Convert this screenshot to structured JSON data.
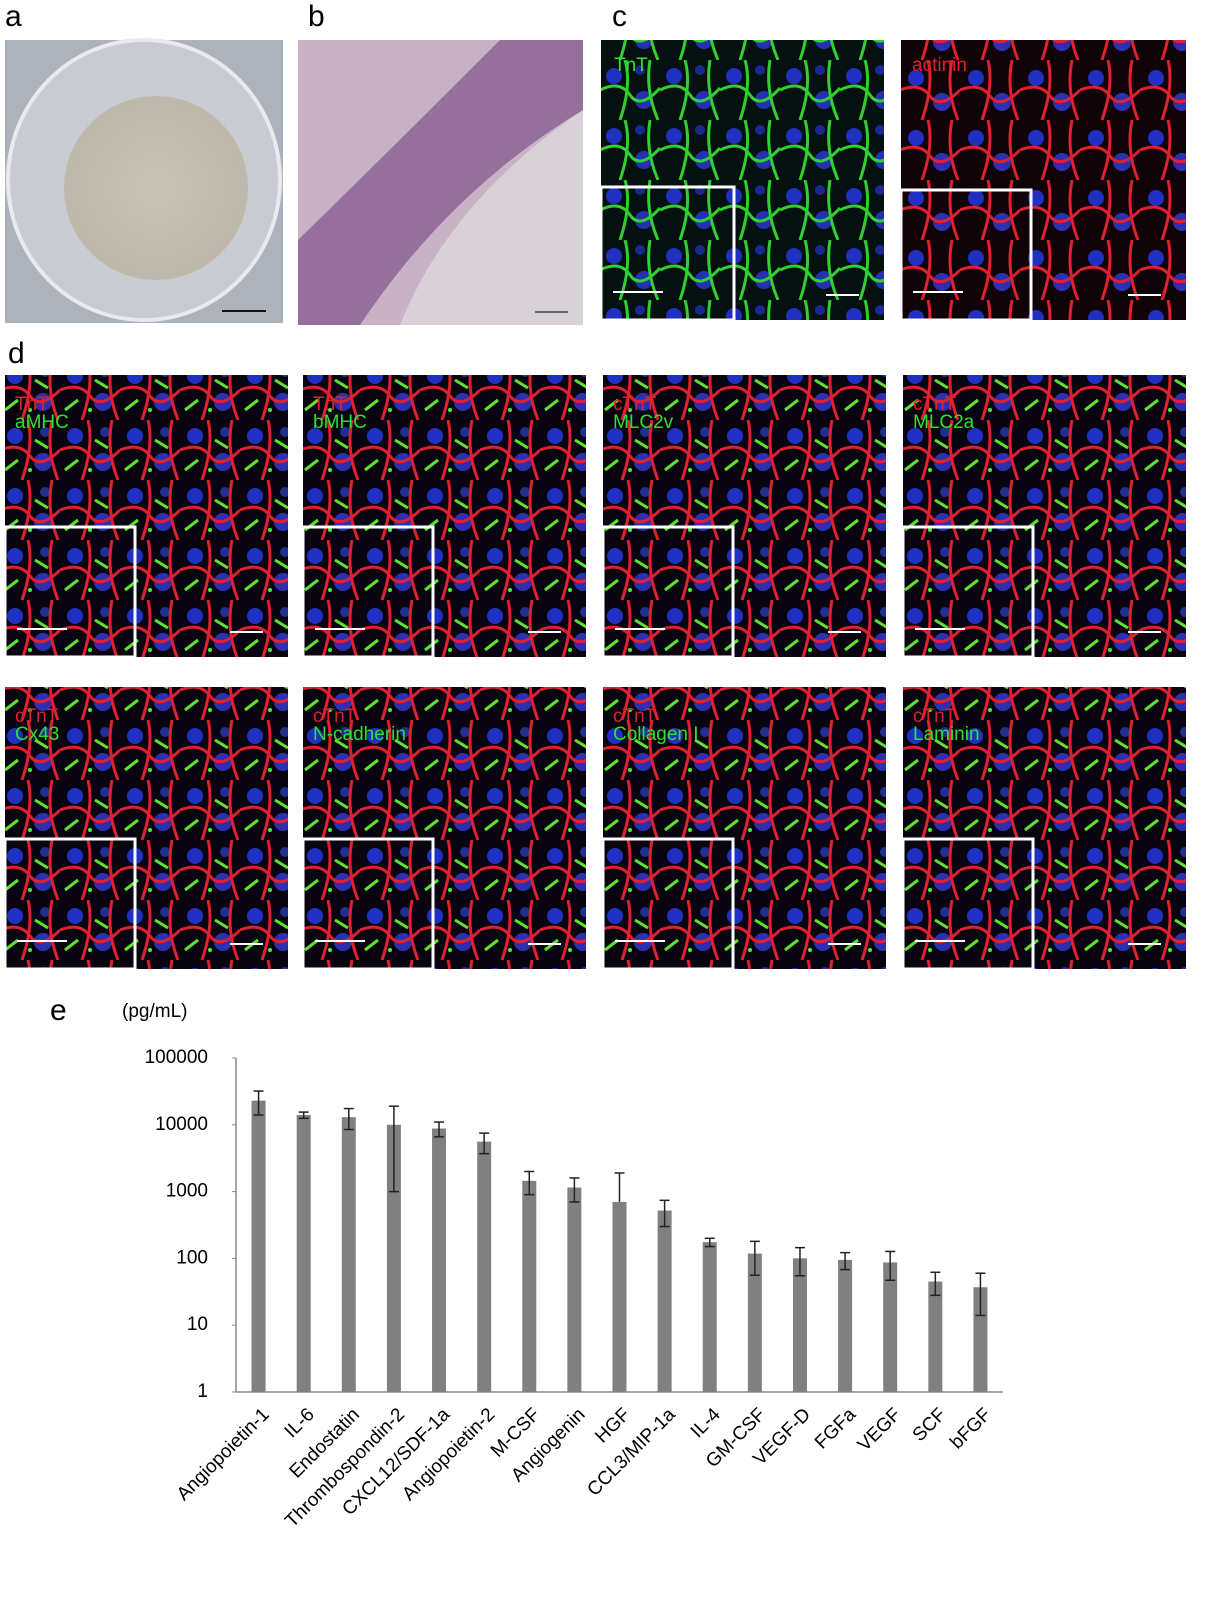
{
  "panel_labels": [
    "a",
    "b",
    "c",
    "d",
    "e"
  ],
  "panel_c": [
    "TnT",
    "actinin"
  ],
  "panel_d": [
    {
      "red": "TnT",
      "green": "aMHC"
    },
    {
      "red": "TnT",
      "green": "bMHC"
    },
    {
      "red": "cTnT",
      "green": "MLC2v"
    },
    {
      "red": "cTnT",
      "green": "MLC2a"
    },
    {
      "red": "cTnT",
      "green": "Cx43"
    },
    {
      "red": "cTnT",
      "green": "N-cadherin"
    },
    {
      "red": "cTnT",
      "green": "Collagen I"
    },
    {
      "red": "cTnT",
      "green": "Laminin"
    }
  ],
  "chart_data": {
    "type": "bar",
    "y_unit": "(pg/mL)",
    "log_scale": true,
    "color": "#808080",
    "categories": [
      "Angiopoietin-1",
      "IL-6",
      "Endostatin",
      "Thrombospondin-2",
      "CXCL12/SDF-1a",
      "Angiopoietin-2",
      "M-CSF",
      "Angiogenin",
      "HGF",
      "CCL3/MIP-1a",
      "IL-4",
      "GM-CSF",
      "VEGF-D",
      "FGFa",
      "VEGF",
      "SCF",
      "bFGF"
    ],
    "values": [
      23000,
      14000,
      13000,
      10000,
      8800,
      5600,
      1450,
      1150,
      700,
      520,
      175,
      118,
      100,
      95,
      87,
      45,
      37
    ],
    "errors": [
      9000,
      1500,
      4500,
      9000,
      2200,
      1900,
      550,
      450,
      1200,
      220,
      25,
      62,
      45,
      27,
      40,
      17,
      23
    ],
    "ylim": [
      1,
      100000
    ],
    "yticks": [
      1,
      10,
      100,
      1000,
      10000,
      100000
    ]
  }
}
